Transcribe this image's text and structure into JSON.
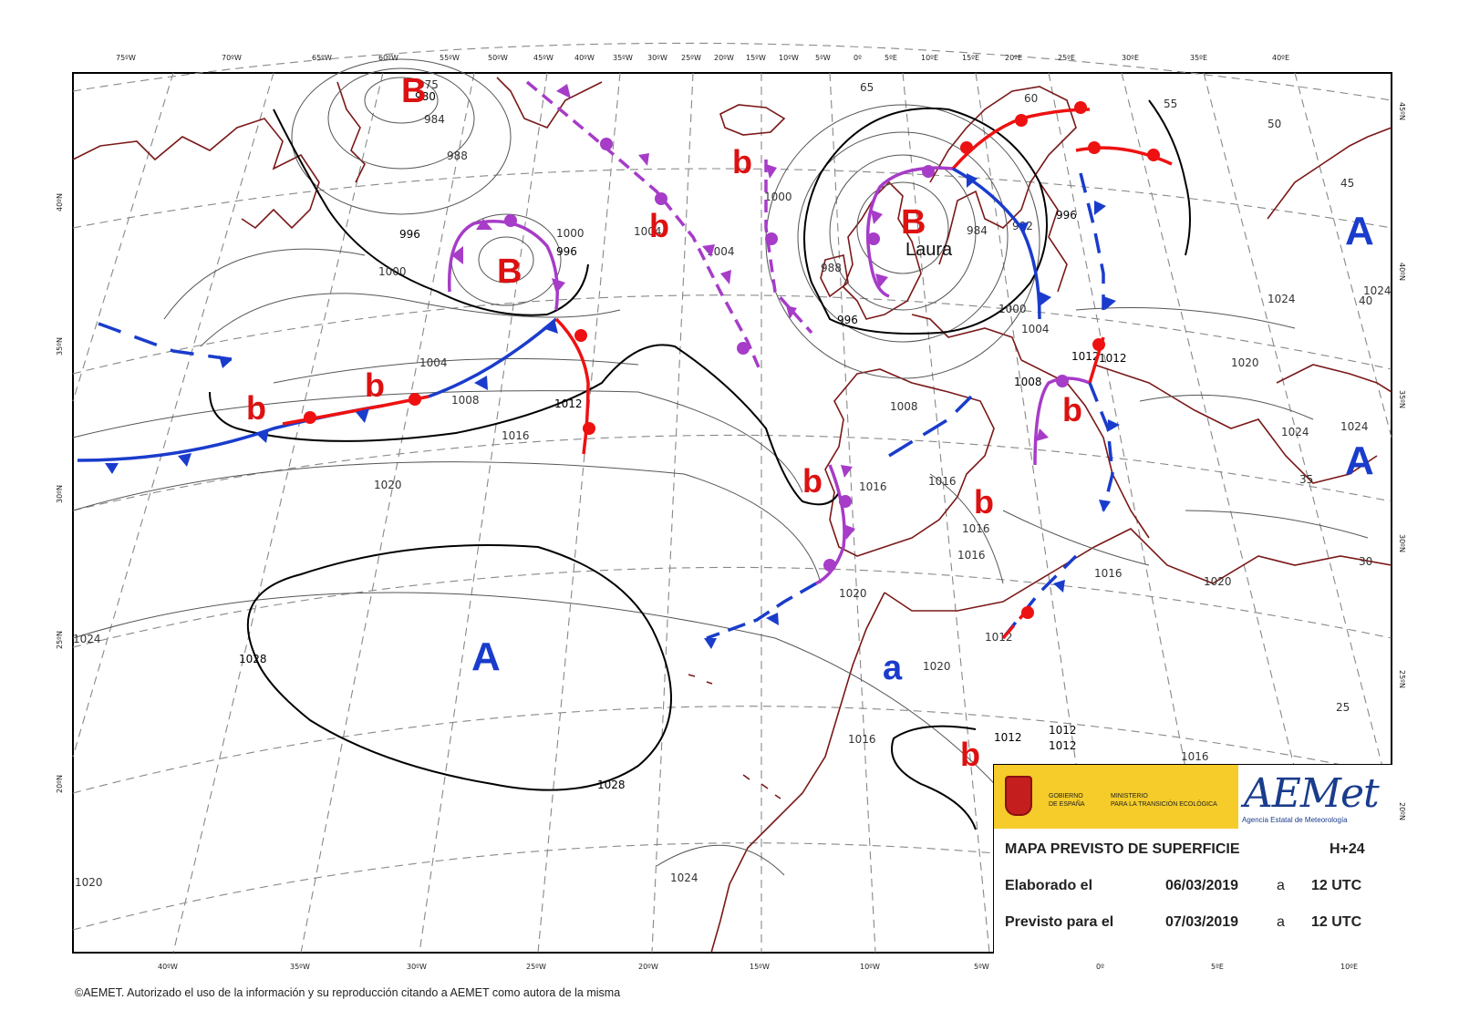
{
  "map": {
    "top_lon_ticks": [
      "75ºW",
      "70ºW",
      "65ºW",
      "60ºW",
      "55ºW",
      "50ºW",
      "45ºW",
      "40ºW",
      "35ºW",
      "30ºW",
      "25ºW",
      "20ºW",
      "15ºW",
      "10ºW",
      "5ºW",
      "0º",
      "5ºE",
      "10ºE",
      "15ºE",
      "20ºE",
      "25ºE",
      "30ºE",
      "35ºE",
      "40ºE"
    ],
    "bottom_lon_ticks": [
      "40ºW",
      "35ºW",
      "30ºW",
      "25ºW",
      "20ºW",
      "15ºW",
      "10ºW",
      "5ºW",
      "0º",
      "5ºE",
      "10ºE"
    ],
    "left_lat_ticks": [
      "40ºN",
      "35ºN",
      "30ºN",
      "25ºN",
      "20ºN"
    ],
    "right_lat_ticks": [
      "45ºN",
      "40ºN",
      "35ºN",
      "30ºN",
      "25ºN",
      "20ºN"
    ],
    "isobar_labels": [
      "975",
      "980",
      "984",
      "988",
      "992",
      "996",
      "1000",
      "1004",
      "1008",
      "1012",
      "1016",
      "1020",
      "1024",
      "1028",
      "996",
      "1000",
      "1004",
      "1012",
      "1016",
      "1020",
      "1024",
      "1028",
      "1020",
      "1016",
      "1012",
      "1008",
      "1004",
      "1000",
      "996",
      "992",
      "988",
      "984",
      "1016",
      "1020",
      "1016",
      "1012",
      "1012",
      "1012",
      "1012",
      "1016",
      "1016",
      "1020",
      "1024",
      "1024",
      "1020",
      "1020",
      "1016",
      "1012",
      "65",
      "60",
      "55",
      "50",
      "45",
      "40",
      "35",
      "30",
      "25"
    ],
    "high_label": "A",
    "low_label": "B",
    "small_low_label": "b",
    "small_high_label": "a",
    "storm_name": "Laura",
    "colors": {
      "warm_front": "#ee1111",
      "cold_front": "#1a3ccc",
      "occluded_front": "#a63cc8",
      "coastline": "#7a1818",
      "isobar": "#444444",
      "grid": "#888888",
      "high_low_blue": "#1a3ccc",
      "low_red": "#dd1111"
    }
  },
  "info": {
    "gov_line1": "GOBIERNO",
    "gov_line2": "DE ESPAÑA",
    "ministry_line1": "MINISTERIO",
    "ministry_line2": "PARA LA TRANSICIÓN ECOLÓGICA",
    "logo_text": "AEMet",
    "agency_name": "Agencia Estatal de Meteorología",
    "title": "MAPA PREVISTO DE SUPERFICIE",
    "forecast_step": "H+24",
    "elaborated_label": "Elaborado el",
    "elaborated_date": "06/03/2019",
    "elaborated_at": "a",
    "elaborated_time": "12 UTC",
    "valid_label": "Previsto para el",
    "valid_date": "07/03/2019",
    "valid_at": "a",
    "valid_time": "12 UTC"
  },
  "copyright": "©AEMET. Autorizado el uso de la información y su reproducción citando a AEMET como autora de la misma"
}
